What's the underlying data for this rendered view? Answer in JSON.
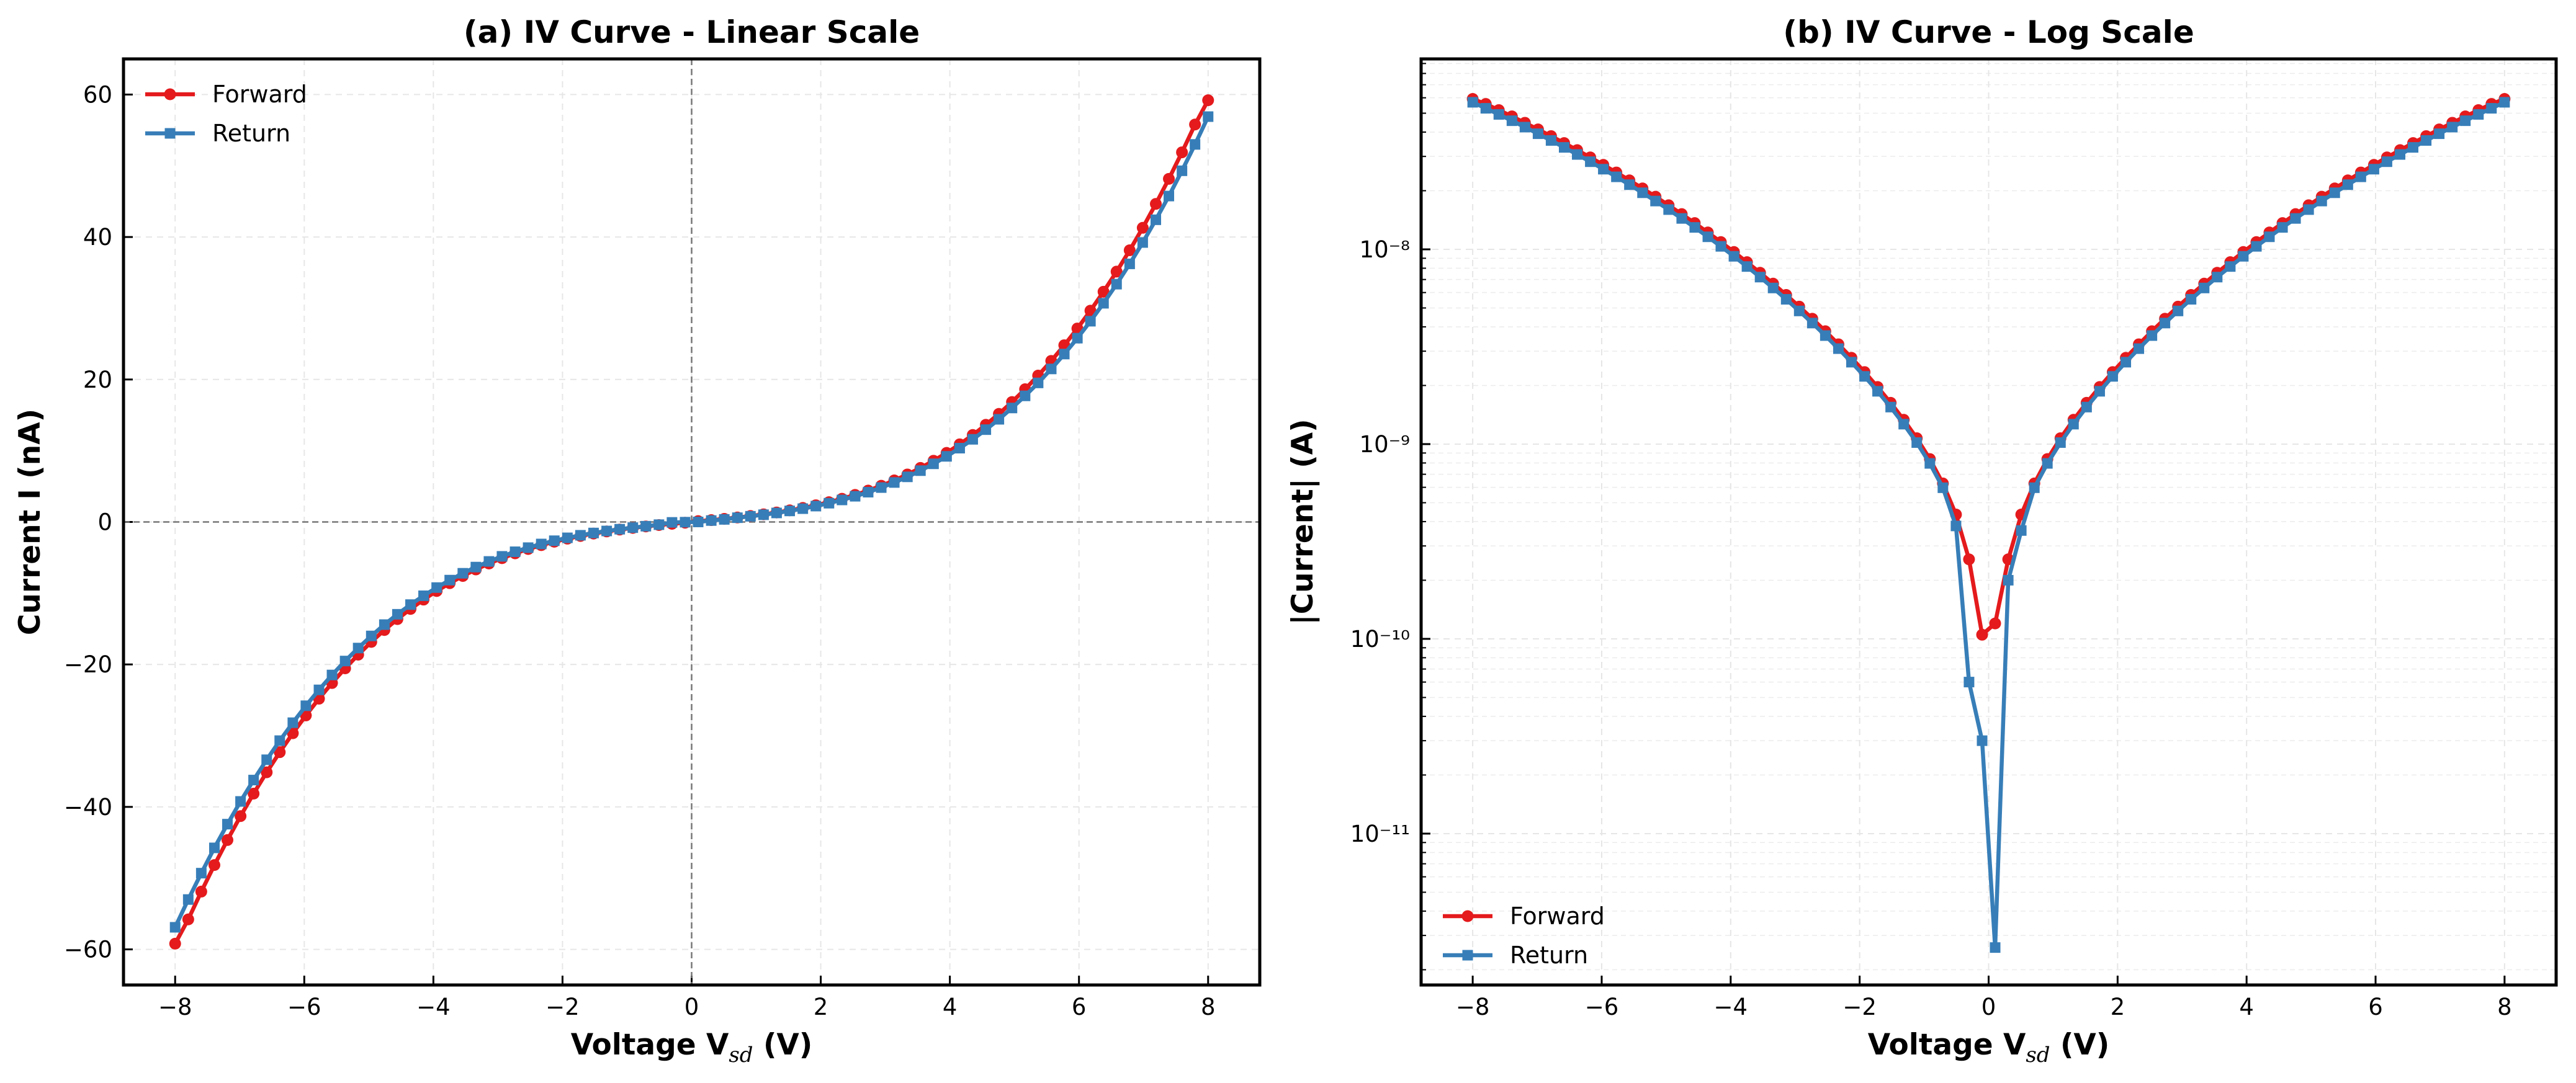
{
  "chart_data": [
    {
      "type": "line",
      "title": "(a) IV Curve - Linear Scale",
      "xlabel": [
        "Voltage V",
        "sd",
        " (V)"
      ],
      "ylabel": "Current I (nA)",
      "x": [
        -8,
        -7.797,
        -7.595,
        -7.392,
        -7.19,
        -6.987,
        -6.785,
        -6.582,
        -6.38,
        -6.177,
        -5.975,
        -5.772,
        -5.57,
        -5.367,
        -5.165,
        -4.962,
        -4.759,
        -4.557,
        -4.354,
        -4.152,
        -3.949,
        -3.747,
        -3.544,
        -3.342,
        -3.139,
        -2.937,
        -2.734,
        -2.532,
        -2.329,
        -2.127,
        -1.924,
        -1.722,
        -1.519,
        -1.316,
        -1.114,
        -0.911,
        -0.709,
        -0.506,
        -0.304,
        -0.101,
        0.101,
        0.304,
        0.506,
        0.709,
        0.911,
        1.114,
        1.316,
        1.519,
        1.722,
        1.924,
        2.127,
        2.329,
        2.532,
        2.734,
        2.937,
        3.139,
        3.342,
        3.544,
        3.747,
        3.949,
        4.152,
        4.354,
        4.557,
        4.759,
        4.962,
        5.165,
        5.367,
        5.57,
        5.772,
        5.975,
        6.177,
        6.38,
        6.582,
        6.785,
        6.987,
        7.19,
        7.392,
        7.595,
        7.797,
        8
      ],
      "series": [
        {
          "name": "Forward",
          "color": "#e41a1c",
          "marker": "circle",
          "values": [
            -59.2,
            -55.79,
            -51.89,
            -48.16,
            -44.65,
            -41.29,
            -38.14,
            -35.14,
            -32.32,
            -29.66,
            -27.16,
            -24.81,
            -22.61,
            -20.55,
            -18.63,
            -16.84,
            -15.17,
            -13.64,
            -12.21,
            -10.9,
            -9.694,
            -8.592,
            -7.581,
            -6.666,
            -5.832,
            -5.081,
            -4.403,
            -3.797,
            -3.254,
            -2.773,
            -2.344,
            -1.965,
            -1.63,
            -1.333,
            -1.072,
            -0.838,
            -0.628,
            -0.435,
            -0.256,
            -0.105,
            0.12,
            0.256,
            0.435,
            0.628,
            0.838,
            1.072,
            1.333,
            1.63,
            1.965,
            2.344,
            2.773,
            3.254,
            3.797,
            4.403,
            5.081,
            5.832,
            6.666,
            7.581,
            8.592,
            9.694,
            10.9,
            12.21,
            13.64,
            15.17,
            16.84,
            18.63,
            20.55,
            22.61,
            24.81,
            27.16,
            29.66,
            32.32,
            35.14,
            38.14,
            41.29,
            44.65,
            48.16,
            51.89,
            55.79,
            59.2
          ]
        },
        {
          "name": "Return",
          "color": "#377eb8",
          "marker": "square",
          "values": [
            -56.9,
            -53.0,
            -49.3,
            -45.75,
            -42.42,
            -39.23,
            -36.23,
            -33.38,
            -30.7,
            -28.18,
            -25.8,
            -23.57,
            -21.48,
            -19.52,
            -17.7,
            -16.0,
            -14.41,
            -12.96,
            -11.6,
            -10.36,
            -9.209,
            -8.162,
            -7.202,
            -6.333,
            -5.54,
            -4.827,
            -4.183,
            -3.607,
            -3.091,
            -2.634,
            -2.227,
            -1.867,
            -1.549,
            -1.266,
            -1.018,
            -0.796,
            -0.597,
            -0.38,
            -0.06,
            -0.03,
            0.0026,
            0.2,
            0.36,
            0.597,
            0.796,
            1.018,
            1.266,
            1.549,
            1.867,
            2.227,
            2.634,
            3.091,
            3.607,
            4.183,
            4.827,
            5.54,
            6.333,
            7.202,
            8.162,
            9.209,
            10.36,
            11.6,
            12.96,
            14.41,
            16.0,
            17.7,
            19.52,
            21.48,
            23.57,
            25.8,
            28.18,
            30.7,
            33.38,
            36.23,
            39.23,
            42.42,
            45.75,
            49.3,
            53.0,
            56.9
          ]
        }
      ],
      "xlim": [
        -8.8,
        8.8
      ],
      "ylim": [
        -65,
        65
      ],
      "xticks": [
        {
          "value": -8,
          "label": "−8"
        },
        {
          "value": -6,
          "label": "−6"
        },
        {
          "value": -4,
          "label": "−4"
        },
        {
          "value": -2,
          "label": "−2"
        },
        0,
        2,
        4,
        6,
        8
      ],
      "yticks": [
        {
          "value": -60,
          "label": "−60"
        },
        {
          "value": -40,
          "label": "−40"
        },
        {
          "value": -20,
          "label": "−20"
        },
        0,
        20,
        40,
        60
      ],
      "grid": true,
      "zero_lines": true,
      "log_y": false,
      "legend": "upper left"
    },
    {
      "type": "line",
      "title": "(b) IV Curve - Log Scale",
      "xlabel": [
        "Voltage V",
        "sd",
        " (V)"
      ],
      "ylabel": "|Current| (A)",
      "x": [
        -8,
        -7.797,
        -7.595,
        -7.392,
        -7.19,
        -6.987,
        -6.785,
        -6.582,
        -6.38,
        -6.177,
        -5.975,
        -5.772,
        -5.57,
        -5.367,
        -5.165,
        -4.962,
        -4.759,
        -4.557,
        -4.354,
        -4.152,
        -3.949,
        -3.747,
        -3.544,
        -3.342,
        -3.139,
        -2.937,
        -2.734,
        -2.532,
        -2.329,
        -2.127,
        -1.924,
        -1.722,
        -1.519,
        -1.316,
        -1.114,
        -0.911,
        -0.709,
        -0.506,
        -0.304,
        -0.101,
        0.101,
        0.304,
        0.506,
        0.709,
        0.911,
        1.114,
        1.316,
        1.519,
        1.722,
        1.924,
        2.127,
        2.329,
        2.532,
        2.734,
        2.937,
        3.139,
        3.342,
        3.544,
        3.747,
        3.949,
        4.152,
        4.354,
        4.557,
        4.759,
        4.962,
        5.165,
        5.367,
        5.57,
        5.772,
        5.975,
        6.177,
        6.38,
        6.582,
        6.785,
        6.987,
        7.19,
        7.392,
        7.595,
        7.797,
        8
      ],
      "series": [
        {
          "name": "Forward",
          "color": "#e41a1c",
          "marker": "circle",
          "values": [
            5.92e-08,
            5.579e-08,
            5.189e-08,
            4.816e-08,
            4.465e-08,
            4.129e-08,
            3.814e-08,
            3.514e-08,
            3.232e-08,
            2.966e-08,
            2.716e-08,
            2.481e-08,
            2.261e-08,
            2.055e-08,
            1.863e-08,
            1.684e-08,
            1.517e-08,
            1.364e-08,
            1.221e-08,
            1.09e-08,
            9.694e-09,
            8.592e-09,
            7.581e-09,
            6.666e-09,
            5.832e-09,
            5.081e-09,
            4.403e-09,
            3.797e-09,
            3.254e-09,
            2.773e-09,
            2.344e-09,
            1.965e-09,
            1.63e-09,
            1.333e-09,
            1.072e-09,
            8.38e-10,
            6.28e-10,
            4.35e-10,
            2.56e-10,
            1.05e-10,
            1.2e-10,
            2.56e-10,
            4.35e-10,
            6.28e-10,
            8.38e-10,
            1.072e-09,
            1.333e-09,
            1.63e-09,
            1.965e-09,
            2.344e-09,
            2.773e-09,
            3.254e-09,
            3.797e-09,
            4.403e-09,
            5.081e-09,
            5.832e-09,
            6.666e-09,
            7.581e-09,
            8.592e-09,
            9.694e-09,
            1.09e-08,
            1.221e-08,
            1.364e-08,
            1.517e-08,
            1.684e-08,
            1.863e-08,
            2.055e-08,
            2.261e-08,
            2.481e-08,
            2.716e-08,
            2.966e-08,
            3.232e-08,
            3.514e-08,
            3.814e-08,
            4.129e-08,
            4.465e-08,
            4.816e-08,
            5.189e-08,
            5.579e-08,
            5.92e-08
          ]
        },
        {
          "name": "Return",
          "color": "#377eb8",
          "marker": "square",
          "values": [
            5.69e-08,
            5.3e-08,
            4.93e-08,
            4.575e-08,
            4.242e-08,
            3.923e-08,
            3.623e-08,
            3.338e-08,
            3.07e-08,
            2.818e-08,
            2.58e-08,
            2.357e-08,
            2.148e-08,
            1.952e-08,
            1.77e-08,
            1.6e-08,
            1.441e-08,
            1.296e-08,
            1.16e-08,
            1.036e-08,
            9.209e-09,
            8.162e-09,
            7.202e-09,
            6.333e-09,
            5.54e-09,
            4.827e-09,
            4.183e-09,
            3.607e-09,
            3.091e-09,
            2.634e-09,
            2.227e-09,
            1.867e-09,
            1.549e-09,
            1.266e-09,
            1.018e-09,
            7.96e-10,
            5.97e-10,
            3.8e-10,
            6e-11,
            3e-11,
            2.6e-12,
            2e-10,
            3.6e-10,
            5.97e-10,
            7.96e-10,
            1.018e-09,
            1.266e-09,
            1.549e-09,
            1.867e-09,
            2.227e-09,
            2.634e-09,
            3.091e-09,
            3.607e-09,
            4.183e-09,
            4.827e-09,
            5.54e-09,
            6.333e-09,
            7.202e-09,
            8.162e-09,
            9.209e-09,
            1.036e-08,
            1.16e-08,
            1.296e-08,
            1.441e-08,
            1.6e-08,
            1.77e-08,
            1.952e-08,
            2.148e-08,
            2.357e-08,
            2.58e-08,
            2.818e-08,
            3.07e-08,
            3.338e-08,
            3.623e-08,
            3.923e-08,
            4.242e-08,
            4.575e-08,
            4.93e-08,
            5.3e-08,
            5.69e-08
          ]
        }
      ],
      "xlim": [
        -8.8,
        8.8
      ],
      "ylim": [
        1.67e-12,
        9.5e-08
      ],
      "xticks": [
        {
          "value": -8,
          "label": "−8"
        },
        {
          "value": -6,
          "label": "−6"
        },
        {
          "value": -4,
          "label": "−4"
        },
        {
          "value": -2,
          "label": "−2"
        },
        0,
        2,
        4,
        6,
        8
      ],
      "yticks": [
        {
          "value": 1e-11,
          "label": "10⁻¹¹"
        },
        {
          "value": 1e-10,
          "label": "10⁻¹⁰"
        },
        {
          "value": 1e-09,
          "label": "10⁻⁹"
        },
        {
          "value": 1e-08,
          "label": "10⁻⁸"
        }
      ],
      "grid": true,
      "zero_lines": false,
      "log_y": true,
      "legend": "lower left"
    }
  ]
}
